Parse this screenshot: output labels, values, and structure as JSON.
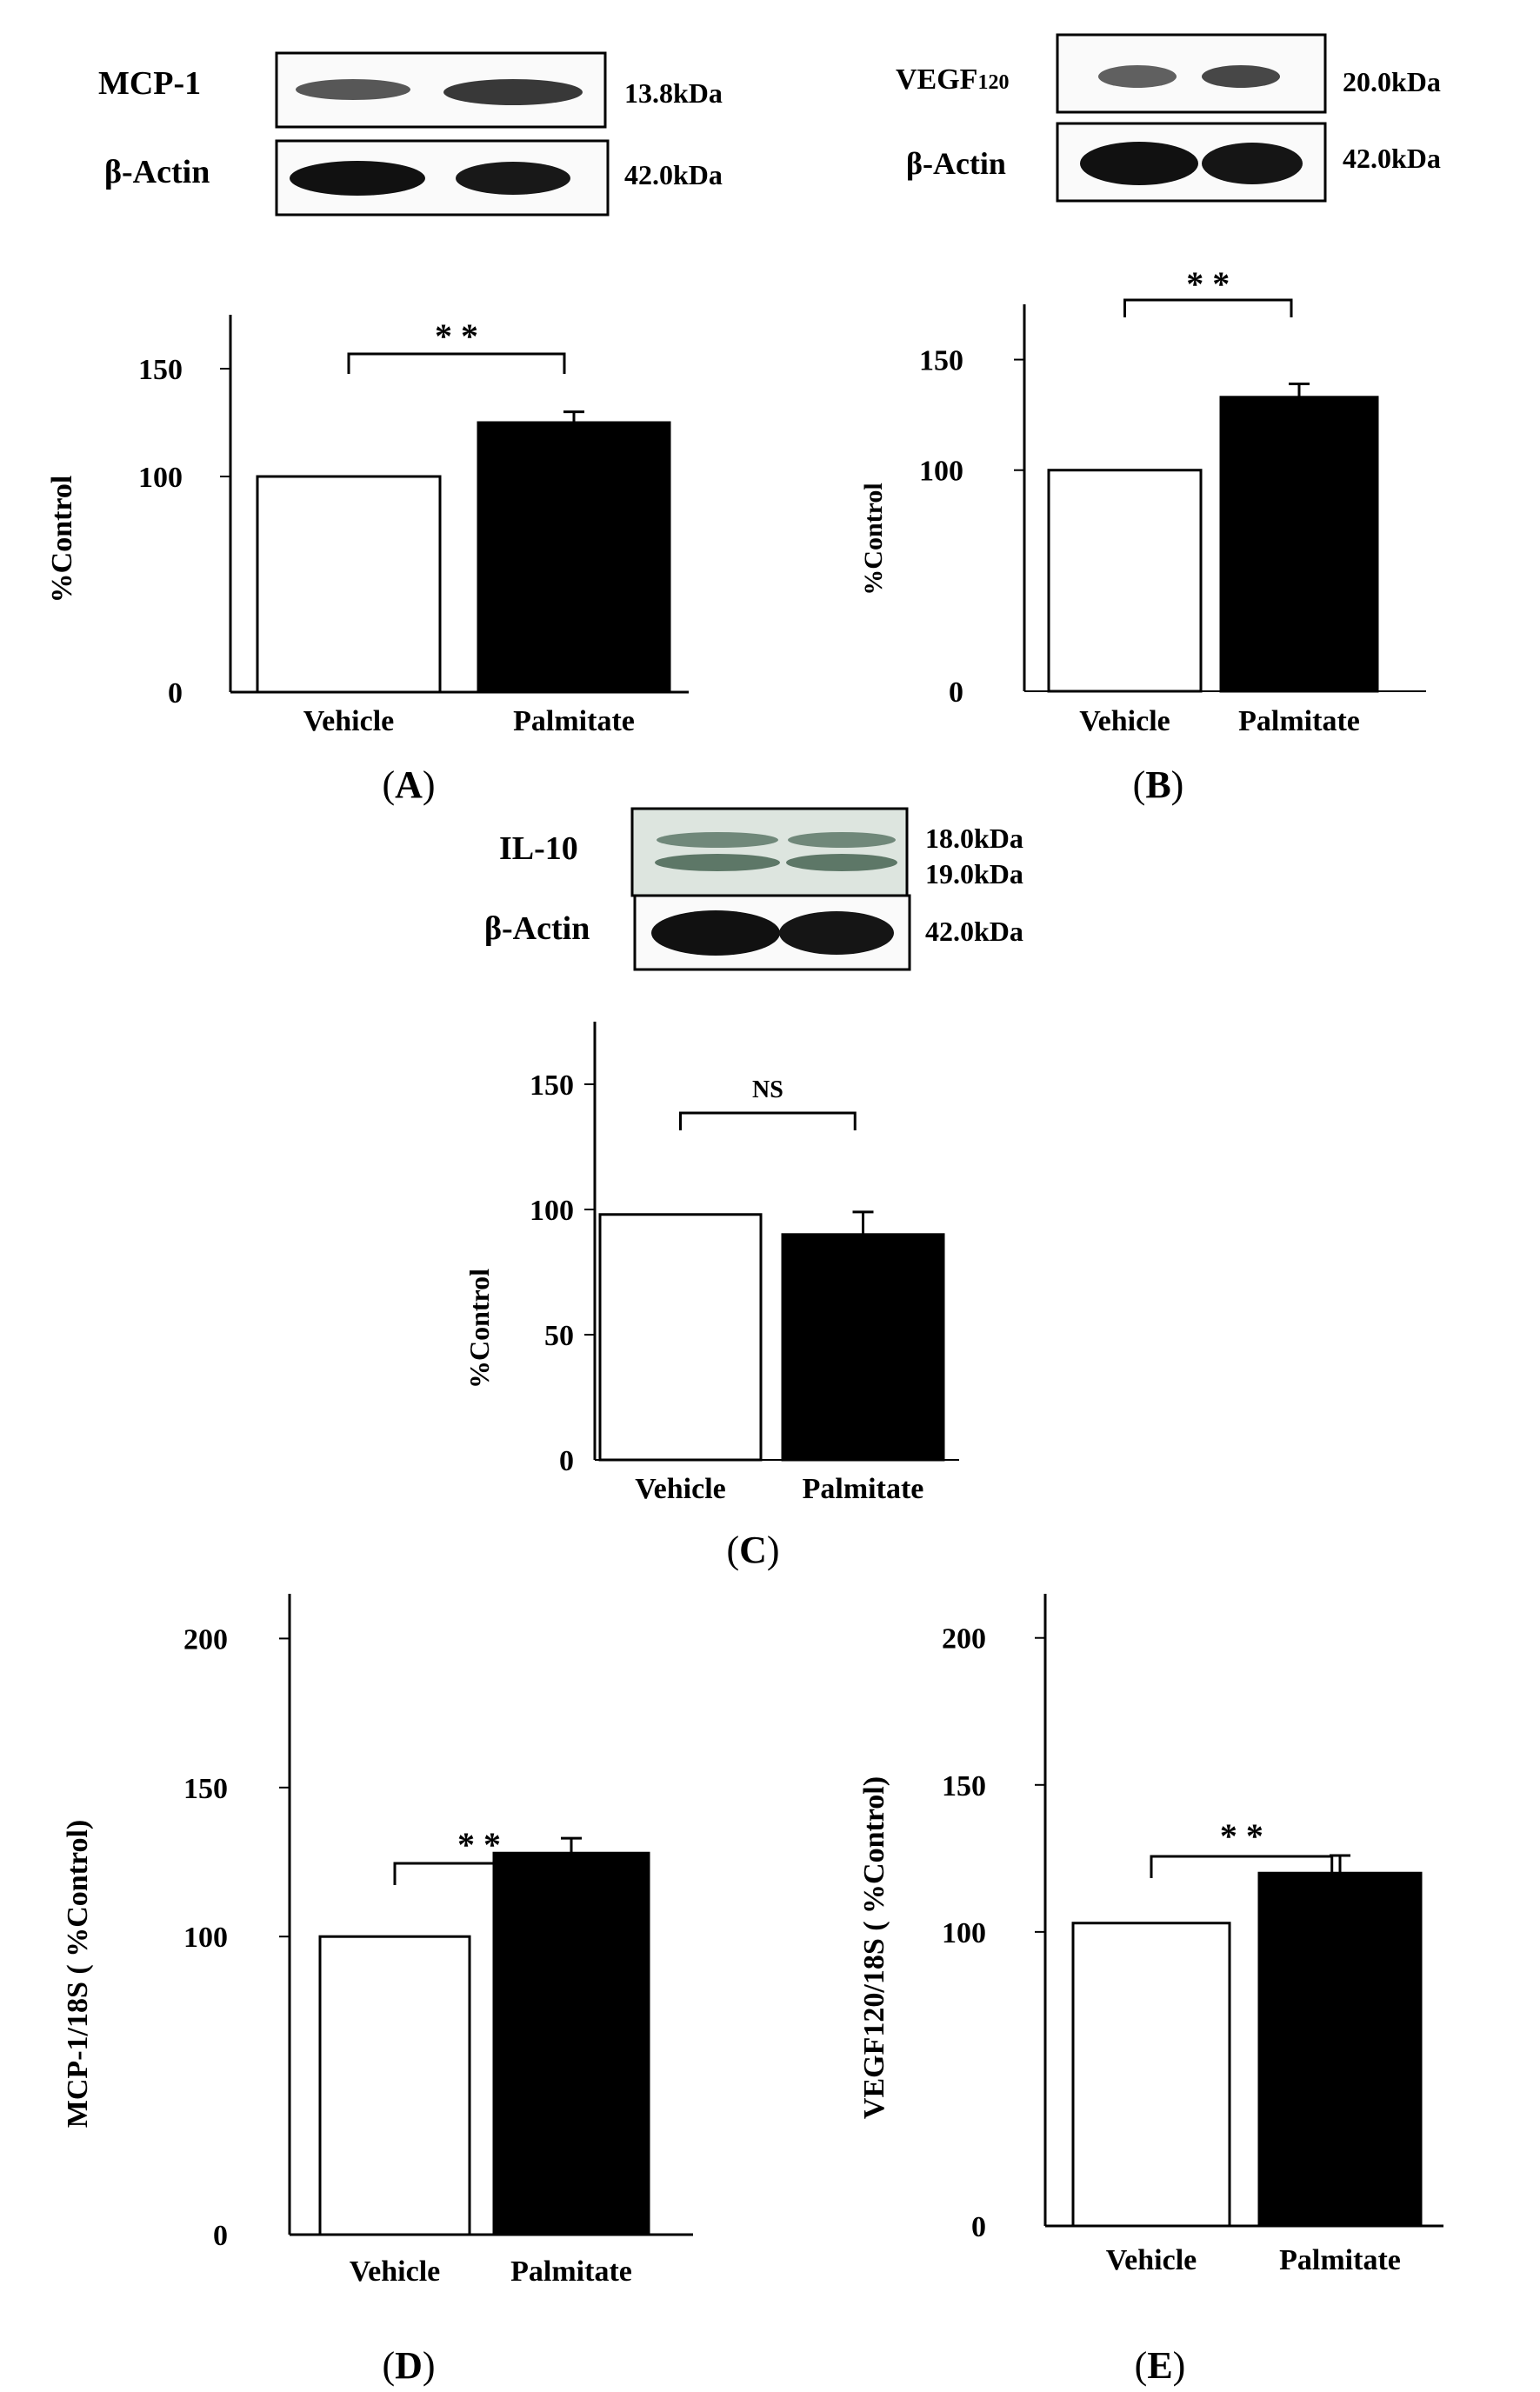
{
  "panels": [
    {
      "id": "A",
      "panel_label": "A",
      "blot": {
        "target": "MCP-1",
        "target_kda": [
          "13.8kDa"
        ],
        "control": "β-Actin",
        "control_kda": "42.0kDa"
      },
      "significance": "* *"
    },
    {
      "id": "B",
      "panel_label": "B",
      "blot": {
        "target": "VEGF",
        "target_sub": "120",
        "target_kda": [
          "20.0kDa"
        ],
        "control": "β-Actin",
        "control_kda": "42.0kDa"
      },
      "significance": "* *"
    },
    {
      "id": "C",
      "panel_label": "C",
      "blot": {
        "target": "IL-10",
        "target_kda": [
          "18.0kDa",
          "19.0kDa"
        ],
        "control": "β-Actin",
        "control_kda": "42.0kDa"
      },
      "significance": "NS"
    },
    {
      "id": "D",
      "panel_label": "D",
      "blot": null,
      "significance": "* *"
    },
    {
      "id": "E",
      "panel_label": "E",
      "blot": null,
      "significance": "* *"
    }
  ],
  "chart_data": [
    {
      "type": "bar",
      "panel": "A",
      "categories": [
        "Vehicle",
        "Palmitate"
      ],
      "values": [
        100,
        125
      ],
      "error": [
        0,
        5
      ],
      "ylabel": "%Control",
      "yticks": [
        0,
        100,
        150
      ],
      "ylim": [
        0,
        175
      ],
      "bar_colors": [
        "#ffffff",
        "#000000"
      ],
      "comparison": "* *"
    },
    {
      "type": "bar",
      "panel": "B",
      "categories": [
        "Vehicle",
        "Palmitate"
      ],
      "values": [
        100,
        133
      ],
      "error": [
        0,
        6
      ],
      "ylabel": "%Control",
      "yticks": [
        0,
        100,
        150
      ],
      "ylim": [
        0,
        175
      ],
      "bar_colors": [
        "#ffffff",
        "#000000"
      ],
      "comparison": "* *"
    },
    {
      "type": "bar",
      "panel": "C",
      "categories": [
        "Vehicle",
        "Palmitate"
      ],
      "values": [
        98,
        90
      ],
      "error": [
        0,
        9
      ],
      "ylabel": "%Control",
      "yticks": [
        0,
        50,
        100,
        150
      ],
      "ylim": [
        0,
        175
      ],
      "bar_colors": [
        "#ffffff",
        "#000000"
      ],
      "comparison": "NS"
    },
    {
      "type": "bar",
      "panel": "D",
      "categories": [
        "Vehicle",
        "Palmitate"
      ],
      "values": [
        100,
        128
      ],
      "error": [
        0,
        5
      ],
      "ylabel": "MCP-1/18S ( %Control)",
      "yticks": [
        0,
        100,
        150,
        200
      ],
      "ylim": [
        0,
        215
      ],
      "bar_colors": [
        "#ffffff",
        "#000000"
      ],
      "comparison": "* *"
    },
    {
      "type": "bar",
      "panel": "E",
      "categories": [
        "Vehicle",
        "Palmitate"
      ],
      "values": [
        103,
        120
      ],
      "error": [
        0,
        6
      ],
      "ylabel": "VEGF120/18S ( %Control)",
      "yticks": [
        0,
        100,
        150,
        200
      ],
      "ylim": [
        0,
        215
      ],
      "bar_colors": [
        "#ffffff",
        "#000000"
      ],
      "comparison": "* *"
    }
  ]
}
